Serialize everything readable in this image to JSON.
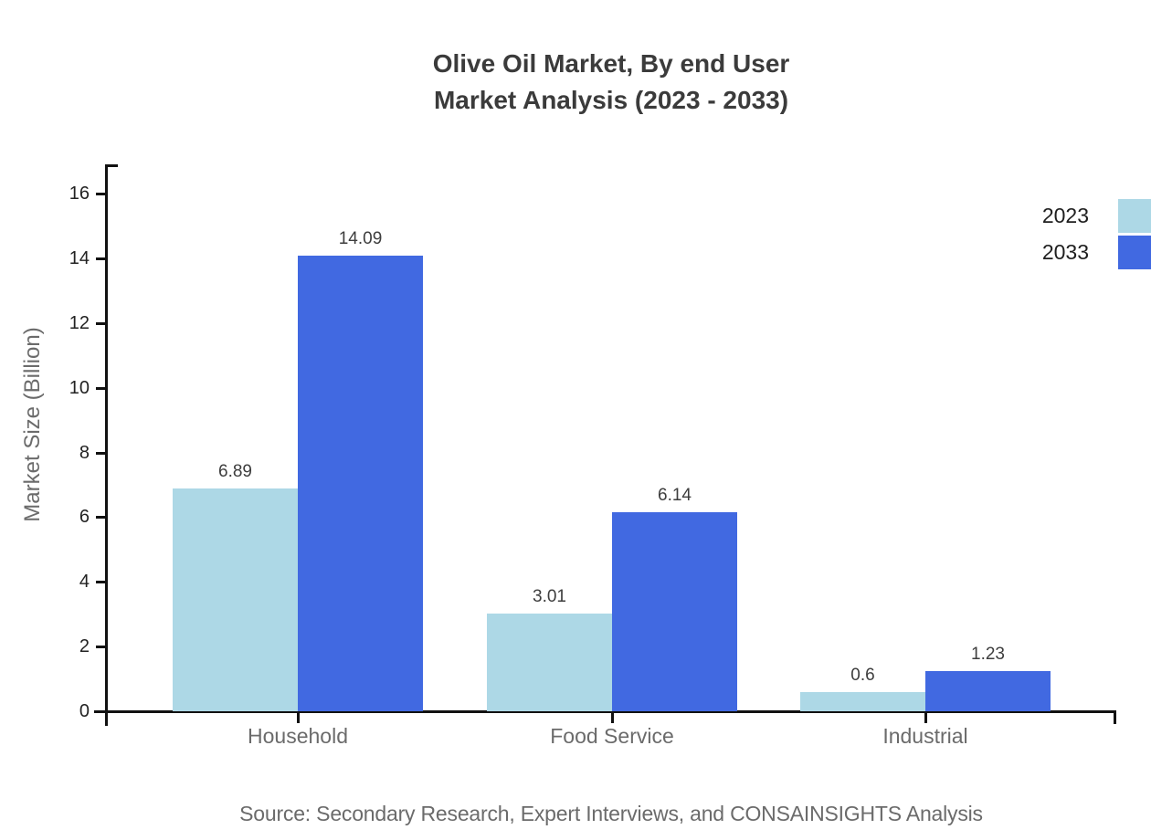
{
  "title": {
    "line1": "Olive Oil Market, By end User",
    "line2": "Market Analysis (2023 - 2033)"
  },
  "ylabel": "Market Size (Billion)",
  "source": "Source: Secondary Research, Expert Interviews, and CONSAINSIGHTS Analysis",
  "colors": {
    "series_2023": "#ADD8E6",
    "series_2033": "#4169E1",
    "axis": "#111111",
    "title_text": "#3b3b3b",
    "muted_text": "#6b6b6b"
  },
  "legend": [
    {
      "label": "2023",
      "color": "#ADD8E6"
    },
    {
      "label": "2033",
      "color": "#4169E1"
    }
  ],
  "chart_data": {
    "type": "bar",
    "title": "Olive Oil Market, By end User Market Analysis (2023 - 2033)",
    "categories": [
      "Household",
      "Food Service",
      "Industrial"
    ],
    "series": [
      {
        "name": "2023",
        "color": "#ADD8E6",
        "values": [
          6.89,
          3.01,
          0.6
        ]
      },
      {
        "name": "2033",
        "color": "#4169E1",
        "values": [
          14.09,
          6.14,
          1.23
        ]
      }
    ],
    "xlabel": "",
    "ylabel": "Market Size (Billion)",
    "ylim": [
      0,
      17
    ],
    "yticks": [
      0,
      2,
      4,
      6,
      8,
      10,
      12,
      14,
      16
    ],
    "grid": false,
    "bar_value_labels": true,
    "legend_position": "top-right"
  }
}
